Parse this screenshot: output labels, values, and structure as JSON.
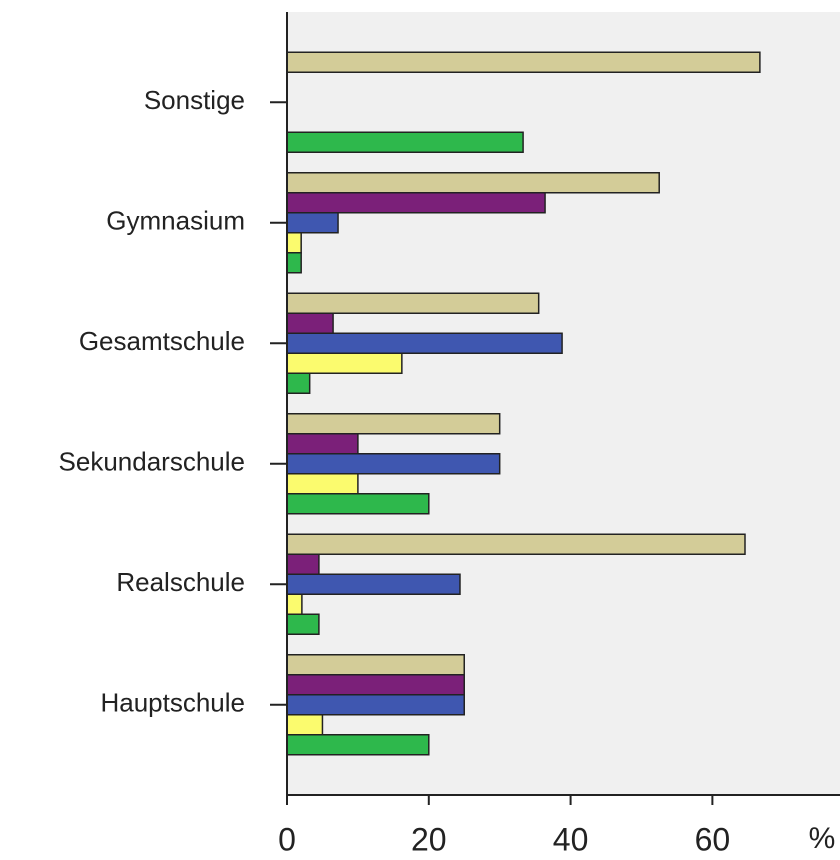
{
  "chart_data": {
    "type": "barh",
    "x_label": "%",
    "categories": [
      "Sonstige",
      "Gymnasium",
      "Gesamtschule",
      "Sekundarschule",
      "Realschule",
      "Hauptschule"
    ],
    "series": [
      {
        "color": "#d3cc98",
        "values": [
          66.7,
          52.5,
          35.5,
          30,
          64.6,
          25
        ]
      },
      {
        "color": "#7b2079",
        "values": [
          0,
          36.4,
          6.5,
          10,
          4.5,
          25
        ]
      },
      {
        "color": "#3f57b0",
        "values": [
          0,
          7.2,
          38.8,
          30,
          24.4,
          25
        ]
      },
      {
        "color": "#fbfb6e",
        "values": [
          0,
          2,
          16.2,
          10,
          2.1,
          5
        ]
      },
      {
        "color": "#2eb84c",
        "values": [
          33.3,
          2,
          3.2,
          20,
          4.5,
          20
        ]
      }
    ],
    "xlim": [
      0,
      78
    ],
    "xticks": [
      0,
      20,
      40,
      60
    ]
  }
}
